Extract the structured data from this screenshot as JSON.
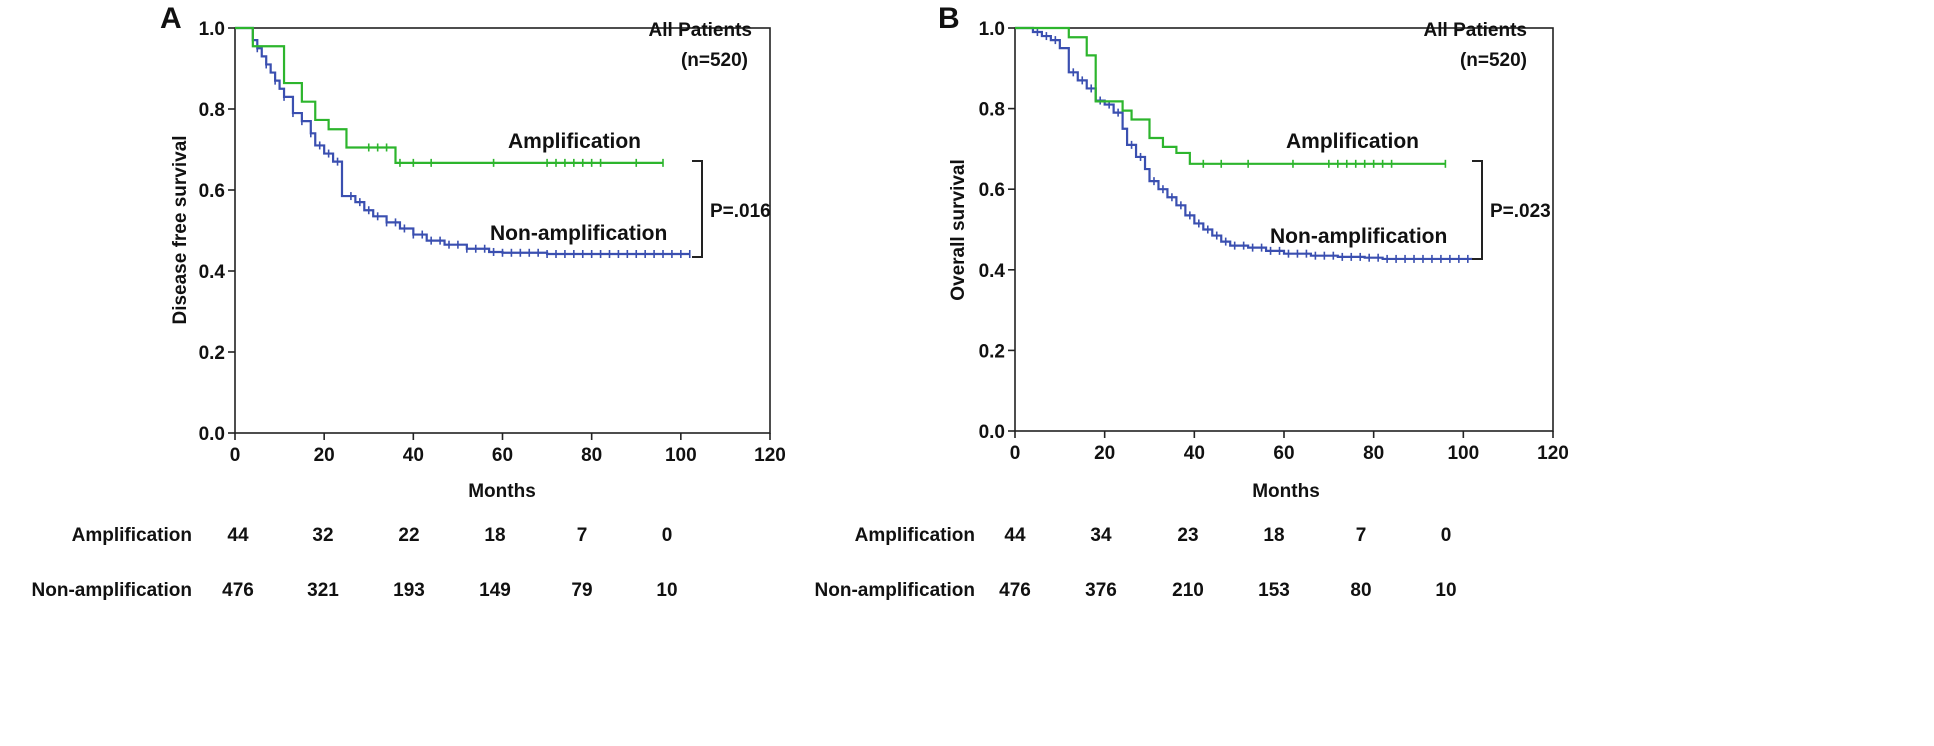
{
  "chart_data": [
    {
      "type": "line",
      "subtype": "kaplan-meier",
      "panel_label": "A",
      "title": "All Patients",
      "subtitle": "(n=520)",
      "xlabel": "Months",
      "ylabel": "Disease free survival",
      "xlim": [
        0,
        120
      ],
      "ylim": [
        0,
        1.0
      ],
      "xticks": [
        "0",
        "20",
        "40",
        "60",
        "80",
        "100",
        "120"
      ],
      "yticks": [
        "0.0",
        "0.2",
        "0.4",
        "0.6",
        "0.8",
        "1.0"
      ],
      "p_value": "P=.016",
      "series": [
        {
          "name": "Amplification",
          "color": "#2db52d",
          "steps": [
            [
              0,
              1.0
            ],
            [
              4,
              1.0
            ],
            [
              4,
              0.955
            ],
            [
              11,
              0.955
            ],
            [
              11,
              0.864
            ],
            [
              15,
              0.864
            ],
            [
              15,
              0.818
            ],
            [
              18,
              0.818
            ],
            [
              18,
              0.773
            ],
            [
              21,
              0.773
            ],
            [
              21,
              0.75
            ],
            [
              25,
              0.75
            ],
            [
              25,
              0.705
            ],
            [
              36,
              0.705
            ],
            [
              36,
              0.667
            ],
            [
              96,
              0.667
            ]
          ],
          "censor_x": [
            30,
            32,
            34,
            37,
            40,
            44,
            58,
            70,
            72,
            74,
            76,
            78,
            80,
            82,
            90,
            96
          ]
        },
        {
          "name": "Non-amplification",
          "color": "#3a4fb0",
          "steps": [
            [
              0,
              1.0
            ],
            [
              4,
              1.0
            ],
            [
              4,
              0.97
            ],
            [
              5,
              0.95
            ],
            [
              6,
              0.93
            ],
            [
              7,
              0.91
            ],
            [
              8,
              0.89
            ],
            [
              9,
              0.87
            ],
            [
              10,
              0.85
            ],
            [
              11,
              0.83
            ],
            [
              13,
              0.79
            ],
            [
              15,
              0.77
            ],
            [
              17,
              0.74
            ],
            [
              18,
              0.71
            ],
            [
              20,
              0.69
            ],
            [
              22,
              0.67
            ],
            [
              24,
              0.64
            ],
            [
              24,
              0.585
            ],
            [
              27,
              0.57
            ],
            [
              29,
              0.55
            ],
            [
              31,
              0.535
            ],
            [
              34,
              0.52
            ],
            [
              37,
              0.505
            ],
            [
              40,
              0.49
            ],
            [
              43,
              0.475
            ],
            [
              47,
              0.465
            ],
            [
              52,
              0.455
            ],
            [
              57,
              0.447
            ],
            [
              60,
              0.445
            ],
            [
              70,
              0.442
            ],
            [
              102,
              0.442
            ]
          ],
          "censor_x": [
            5,
            7,
            9,
            11,
            13,
            15,
            17,
            19,
            21,
            23,
            26,
            28,
            30,
            32,
            34,
            36,
            38,
            40,
            42,
            44,
            46,
            48,
            50,
            52,
            54,
            56,
            58,
            60,
            62,
            64,
            66,
            68,
            70,
            72,
            74,
            76,
            78,
            80,
            82,
            84,
            86,
            88,
            90,
            92,
            94,
            96,
            98,
            100,
            102
          ]
        }
      ],
      "risk_table": {
        "rows": [
          {
            "label": "Amplification",
            "values": [
              "44",
              "32",
              "22",
              "18",
              "7",
              "0"
            ]
          },
          {
            "label": "Non-amplification",
            "values": [
              "476",
              "321",
              "193",
              "149",
              "79",
              "10"
            ]
          }
        ]
      }
    },
    {
      "type": "line",
      "subtype": "kaplan-meier",
      "panel_label": "B",
      "title": "All Patients",
      "subtitle": "(n=520)",
      "xlabel": "Months",
      "ylabel": "Overall survival",
      "xlim": [
        0,
        120
      ],
      "ylim": [
        0,
        1.0
      ],
      "xticks": [
        "0",
        "20",
        "40",
        "60",
        "80",
        "100",
        "120"
      ],
      "yticks": [
        "0.0",
        "0.2",
        "0.4",
        "0.6",
        "0.8",
        "1.0"
      ],
      "p_value": "P=.023",
      "series": [
        {
          "name": "Amplification",
          "color": "#2db52d",
          "steps": [
            [
              0,
              1.0
            ],
            [
              12,
              1.0
            ],
            [
              12,
              0.977
            ],
            [
              16,
              0.977
            ],
            [
              16,
              0.932
            ],
            [
              18,
              0.932
            ],
            [
              18,
              0.818
            ],
            [
              24,
              0.818
            ],
            [
              24,
              0.795
            ],
            [
              26,
              0.795
            ],
            [
              26,
              0.773
            ],
            [
              30,
              0.773
            ],
            [
              30,
              0.727
            ],
            [
              33,
              0.727
            ],
            [
              33,
              0.705
            ],
            [
              36,
              0.705
            ],
            [
              36,
              0.69
            ],
            [
              39,
              0.69
            ],
            [
              39,
              0.663
            ],
            [
              96,
              0.663
            ]
          ],
          "censor_x": [
            42,
            46,
            52,
            62,
            70,
            72,
            74,
            76,
            78,
            80,
            82,
            84,
            96
          ]
        },
        {
          "name": "Non-amplification",
          "color": "#3a4fb0",
          "steps": [
            [
              0,
              1.0
            ],
            [
              4,
              1.0
            ],
            [
              4,
              0.99
            ],
            [
              6,
              0.98
            ],
            [
              8,
              0.97
            ],
            [
              10,
              0.95
            ],
            [
              12,
              0.93
            ],
            [
              12,
              0.89
            ],
            [
              14,
              0.87
            ],
            [
              16,
              0.85
            ],
            [
              18,
              0.82
            ],
            [
              20,
              0.81
            ],
            [
              22,
              0.79
            ],
            [
              24,
              0.75
            ],
            [
              25,
              0.71
            ],
            [
              27,
              0.68
            ],
            [
              29,
              0.65
            ],
            [
              30,
              0.62
            ],
            [
              32,
              0.6
            ],
            [
              34,
              0.58
            ],
            [
              36,
              0.56
            ],
            [
              38,
              0.535
            ],
            [
              40,
              0.515
            ],
            [
              42,
              0.5
            ],
            [
              44,
              0.485
            ],
            [
              46,
              0.47
            ],
            [
              48,
              0.46
            ],
            [
              52,
              0.455
            ],
            [
              56,
              0.447
            ],
            [
              60,
              0.44
            ],
            [
              66,
              0.435
            ],
            [
              72,
              0.432
            ],
            [
              78,
              0.43
            ],
            [
              82,
              0.427
            ],
            [
              102,
              0.427
            ]
          ],
          "censor_x": [
            5,
            7,
            9,
            13,
            15,
            17,
            19,
            21,
            23,
            26,
            28,
            31,
            33,
            35,
            37,
            39,
            41,
            43,
            45,
            47,
            49,
            51,
            53,
            55,
            57,
            59,
            61,
            63,
            65,
            67,
            69,
            71,
            73,
            75,
            77,
            79,
            81,
            83,
            85,
            87,
            89,
            91,
            93,
            95,
            97,
            99,
            101
          ]
        }
      ],
      "risk_table": {
        "rows": [
          {
            "label": "Amplification",
            "values": [
              "44",
              "34",
              "23",
              "18",
              "7",
              "0"
            ]
          },
          {
            "label": "Non-amplification",
            "values": [
              "476",
              "376",
              "210",
              "153",
              "80",
              "10"
            ]
          }
        ]
      }
    }
  ]
}
